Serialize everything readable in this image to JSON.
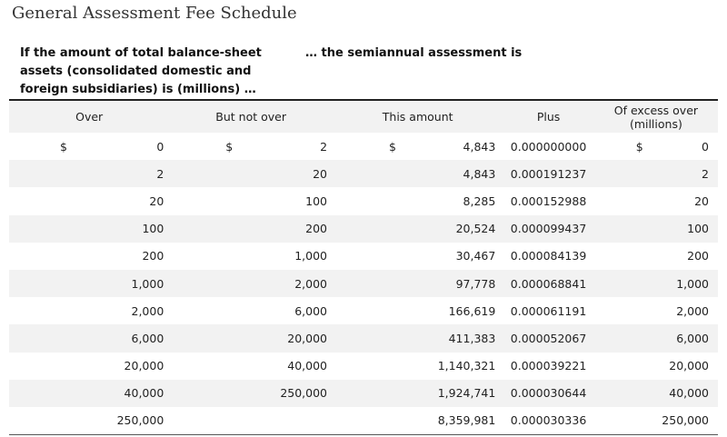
{
  "title": "General Assessment Fee Schedule",
  "header": {
    "left": "If the amount of total balance-sheet assets (consolidated domestic and foreign subsidiaries) is (millions) …",
    "right": "… the semiannual assessment is"
  },
  "columns": [
    "Over",
    "But not over",
    "This amount",
    "Plus",
    "Of excess over (millions)"
  ],
  "currency": "$",
  "rows": [
    {
      "over": "0",
      "but_not_over": "2",
      "this_amount": "4,843",
      "plus": "0.000000000",
      "excess_over": "0"
    },
    {
      "over": "2",
      "but_not_over": "20",
      "this_amount": "4,843",
      "plus": "0.000191237",
      "excess_over": "2"
    },
    {
      "over": "20",
      "but_not_over": "100",
      "this_amount": "8,285",
      "plus": "0.000152988",
      "excess_over": "20"
    },
    {
      "over": "100",
      "but_not_over": "200",
      "this_amount": "20,524",
      "plus": "0.000099437",
      "excess_over": "100"
    },
    {
      "over": "200",
      "but_not_over": "1,000",
      "this_amount": "30,467",
      "plus": "0.000084139",
      "excess_over": "200"
    },
    {
      "over": "1,000",
      "but_not_over": "2,000",
      "this_amount": "97,778",
      "plus": "0.000068841",
      "excess_over": "1,000"
    },
    {
      "over": "2,000",
      "but_not_over": "6,000",
      "this_amount": "166,619",
      "plus": "0.000061191",
      "excess_over": "2,000"
    },
    {
      "over": "6,000",
      "but_not_over": "20,000",
      "this_amount": "411,383",
      "plus": "0.000052067",
      "excess_over": "6,000"
    },
    {
      "over": "20,000",
      "but_not_over": "40,000",
      "this_amount": "1,140,321",
      "plus": "0.000039221",
      "excess_over": "20,000"
    },
    {
      "over": "40,000",
      "but_not_over": "250,000",
      "this_amount": "1,924,741",
      "plus": "0.000030644",
      "excess_over": "40,000"
    },
    {
      "over": "250,000",
      "but_not_over": "",
      "this_amount": "8,359,981",
      "plus": "0.000030336",
      "excess_over": "250,000"
    }
  ]
}
